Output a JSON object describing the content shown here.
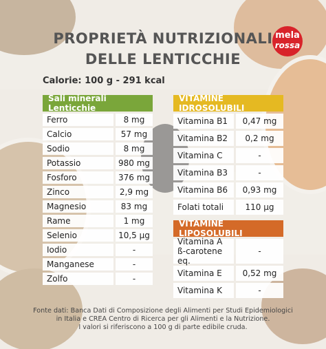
{
  "title": {
    "line1": "PROPRIETÀ NUTRIZIONALI",
    "line2": "DELLE LENTICCHIE"
  },
  "logo": {
    "line1": "mela",
    "line2": "rossa"
  },
  "calories": "Calorie: 100 g - 291 kcal",
  "minerals": {
    "header": "Sali minerali Lenticchie",
    "rows": [
      {
        "name": "Ferro",
        "value": "8 mg"
      },
      {
        "name": "Calcio",
        "value": "57 mg"
      },
      {
        "name": "Sodio",
        "value": "8 mg"
      },
      {
        "name": "Potassio",
        "value": "980 mg"
      },
      {
        "name": "Fosforo",
        "value": "376 mg"
      },
      {
        "name": "Zinco",
        "value": "2,9 mg"
      },
      {
        "name": "Magnesio",
        "value": "83 mg"
      },
      {
        "name": "Rame",
        "value": "1 mg"
      },
      {
        "name": "Selenio",
        "value": "10,5 µg"
      },
      {
        "name": "Iodio",
        "value": "-"
      },
      {
        "name": "Manganese",
        "value": "-"
      },
      {
        "name": "Zolfo",
        "value": "-"
      }
    ]
  },
  "vitamins_water": {
    "header": "VITAMINE IDROSOLUBILI",
    "rows": [
      {
        "name": "Vitamina B1",
        "value": "0,47 mg"
      },
      {
        "name": "Vitamina B2",
        "value": "0,2 mg"
      },
      {
        "name": "Vitamina C",
        "value": "-"
      },
      {
        "name": "Vitamina B3",
        "value": "-"
      },
      {
        "name": "Vitamina B6",
        "value": "0,93 mg"
      },
      {
        "name": "Folati totali",
        "value": "110 µg"
      }
    ]
  },
  "vitamins_fat": {
    "header": "VITAMINE LIPOSOLUBILI",
    "rows": [
      {
        "name": "Vitamina A",
        "name2": "ß-carotene eq.",
        "value": "-"
      },
      {
        "name": "Vitamina E",
        "value": "0,52 mg"
      },
      {
        "name": "Vitamina K",
        "value": "-"
      }
    ]
  },
  "footer": {
    "line1": "Fonte dati: Banca Dati di Composizione degli Alimenti per Studi Epidemiologici",
    "line2": "in Italia e CREA Centro di Ricerca per gli Alimenti e la Nutrizione.",
    "line3": "I valori si riferiscono a 100 g di parte edibile cruda."
  },
  "colors": {
    "minerals_header": "#7aa63a",
    "water_header": "#e5b922",
    "fat_header": "#d46a28",
    "logo": "#d8232a"
  }
}
